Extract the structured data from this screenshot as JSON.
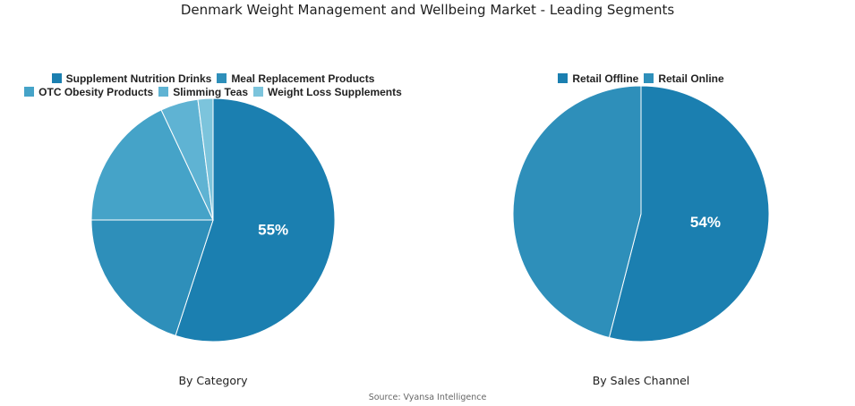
{
  "title": "Denmark Weight Management and Wellbeing Market - Leading Segments",
  "source": "Source: Vyansa Intelligence",
  "chart_data": [
    {
      "type": "pie",
      "subtitle": "By Category",
      "legend_placement": "top",
      "labels": [
        "Supplement Nutrition Drinks",
        "Meal Replacement Products",
        "OTC Obesity Products",
        "Slimming Teas",
        "Weight Loss Supplements"
      ],
      "values": [
        55,
        20,
        18,
        5,
        2
      ],
      "colors": [
        "#1b7fb0",
        "#2e8fba",
        "#45a3c8",
        "#5fb3d3",
        "#7cc4dc"
      ],
      "data_labels": [
        "55%",
        "",
        "",
        "",
        ""
      ]
    },
    {
      "type": "pie",
      "subtitle": "By Sales Channel",
      "legend_placement": "top",
      "labels": [
        "Retail Offline",
        "Retail Online"
      ],
      "values": [
        54,
        46
      ],
      "colors": [
        "#1b7fb0",
        "#2e8fba"
      ],
      "data_labels": [
        "54%",
        ""
      ]
    }
  ]
}
